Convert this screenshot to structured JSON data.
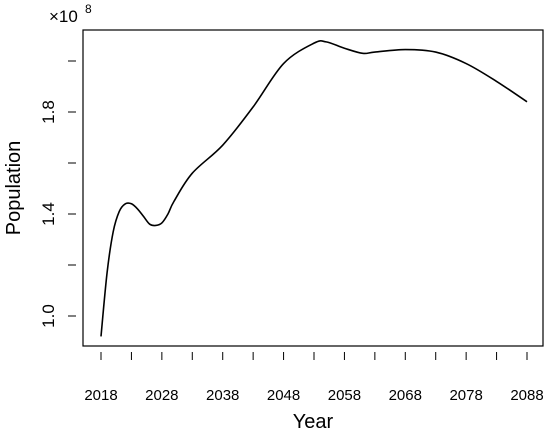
{
  "chart_data": {
    "type": "line",
    "title": "",
    "xlabel": "Year",
    "ylabel": "Population",
    "y_multiplier_label": "×10",
    "y_multiplier_exponent": "8",
    "xlim": [
      2018,
      2088
    ],
    "ylim": [
      0.9,
      2.12
    ],
    "x_ticks": [
      2018,
      2023,
      2028,
      2033,
      2038,
      2043,
      2048,
      2053,
      2058,
      2063,
      2068,
      2073,
      2078,
      2083,
      2088
    ],
    "x_tick_labels": [
      "2018",
      "2028",
      "2038",
      "2048",
      "2058",
      "2068",
      "2078",
      "2088"
    ],
    "y_ticks": [
      1.0,
      1.2,
      1.4,
      1.6,
      1.8,
      2.0
    ],
    "y_tick_labels": [
      "1.0",
      "1.4",
      "1.8"
    ],
    "grid": false,
    "series": [
      {
        "x": [
          2018,
          2019,
          2020,
          2021,
          2022,
          2023,
          2024,
          2025,
          2026,
          2027,
          2028,
          2029,
          2030,
          2033,
          2038,
          2043,
          2048,
          2053,
          2055,
          2058,
          2061,
          2063,
          2068,
          2073,
          2078,
          2083,
          2088
        ],
        "values": [
          0.92,
          1.17,
          1.33,
          1.41,
          1.44,
          1.44,
          1.42,
          1.39,
          1.36,
          1.355,
          1.365,
          1.4,
          1.45,
          1.56,
          1.67,
          1.82,
          1.99,
          2.07,
          2.075,
          2.05,
          2.03,
          2.035,
          2.045,
          2.035,
          1.99,
          1.92,
          1.84
        ]
      }
    ]
  }
}
